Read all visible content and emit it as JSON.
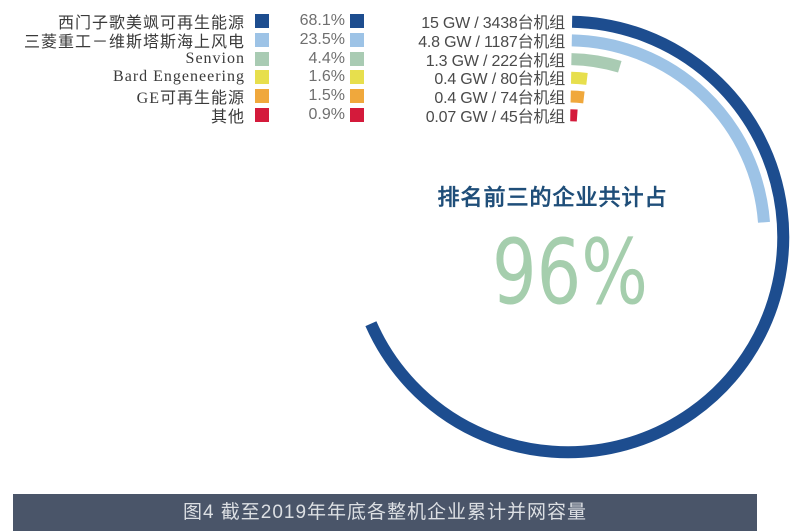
{
  "chart_data": {
    "type": "donut-arcs",
    "description": "Concentric clock-style arcs, one per company, all starting near 12 o'clock and sweeping clockwise proportionally to market share",
    "caption": "图4 截至2019年年底各整机企业累计并网容量",
    "center_label": "排名前三的企业共计占",
    "center_value": "96%",
    "start_angle_deg": -88.9,
    "companies": [
      {
        "label": "西门子歌美飒可再生能源",
        "share_pct": "68.1%",
        "share_value": 68.1,
        "capacity": "15 GW / 3438台机组",
        "color": "#1d4d8f"
      },
      {
        "label": "三菱重工－维斯塔斯海上风电",
        "share_pct": "23.5%",
        "share_value": 23.5,
        "capacity": "4.8 GW / 1187台机组",
        "color": "#9dc3e6"
      },
      {
        "label": "Senvion",
        "share_pct": "4.4%",
        "share_value": 4.4,
        "capacity": "1.3 GW / 222台机组",
        "color": "#a9cbb3"
      },
      {
        "label": "Bard Engeneering",
        "share_pct": "1.6%",
        "share_value": 1.6,
        "capacity": "0.4 GW / 80台机组",
        "color": "#e7df4d"
      },
      {
        "label": "GE可再生能源",
        "share_pct": "1.5%",
        "share_value": 1.5,
        "capacity": "0.4 GW / 74台机组",
        "color": "#f0a83c"
      },
      {
        "label": "其他",
        "share_pct": "0.9%",
        "share_value": 0.9,
        "capacity": "0.07 GW / 45台机组",
        "color": "#d41a3b"
      }
    ]
  },
  "colors": {
    "center_label_navy": "#1f4e79",
    "center_value_green": "#a5cead",
    "caption_bg": "#4a5569",
    "caption_text": "#dcdfe3"
  }
}
